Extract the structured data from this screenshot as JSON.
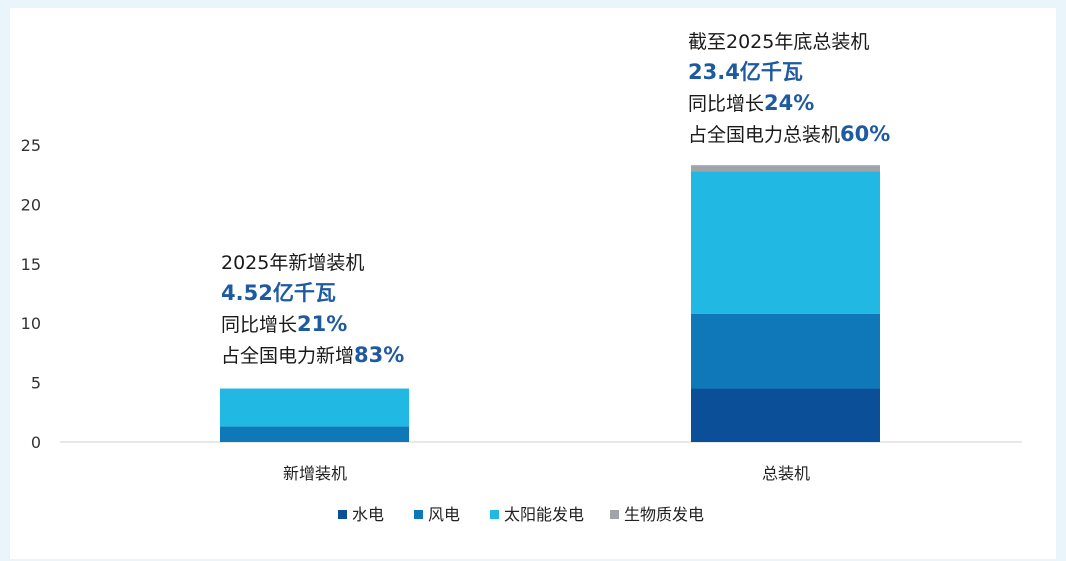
{
  "chart_data": {
    "type": "bar",
    "stacked": true,
    "categories": [
      "新增装机",
      "总装机"
    ],
    "series": [
      {
        "name": "水电",
        "color": "#0a4f97",
        "values": [
          0.0,
          4.5
        ]
      },
      {
        "name": "风电",
        "color": "#0e78b8",
        "values": [
          1.3,
          6.3
        ]
      },
      {
        "name": "太阳能发电",
        "color": "#22b8e4",
        "values": [
          3.2,
          12.0
        ]
      },
      {
        "name": "生物质发电",
        "color": "#a0a4a8",
        "values": [
          0.0,
          0.5
        ]
      }
    ],
    "yticks": [
      0,
      5,
      10,
      15,
      20,
      25
    ],
    "ylim": [
      0,
      25
    ],
    "legend_position": "bottom",
    "grid": false,
    "title": "",
    "xlabel": "",
    "ylabel": "",
    "annotations": [
      {
        "category": "新增装机",
        "line1": "2025年新增装机",
        "line2": "4.52亿千瓦",
        "line3_text": "同比增长",
        "line3_value": "21%",
        "line4_text": "占全国电力新增",
        "line4_value": "83%"
      },
      {
        "category": "总装机",
        "line1": "截至2025年底总装机",
        "line2": "23.4亿千瓦",
        "line3_text": "同比增长",
        "line3_value": "24%",
        "line4_text": "占全国电力总装机",
        "line4_value": "60%"
      }
    ]
  }
}
